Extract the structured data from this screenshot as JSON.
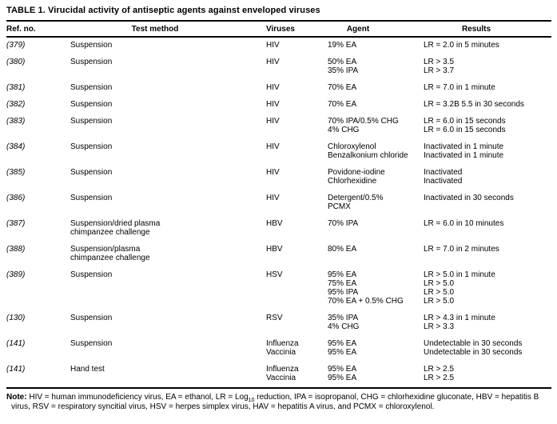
{
  "table": {
    "title": "TABLE 1. Virucidal activity of antiseptic agents against enveloped viruses",
    "columns": [
      "Ref. no.",
      "Test method",
      "Viruses",
      "Agent",
      "Results"
    ],
    "rows": [
      {
        "ref": "(379)",
        "method": [
          "Suspension"
        ],
        "viruses": [
          "HIV"
        ],
        "agents": [
          "19% EA"
        ],
        "results": [
          "LR = 2.0 in 5 minutes"
        ]
      },
      {
        "ref": "(380)",
        "method": [
          "Suspension"
        ],
        "viruses": [
          "HIV"
        ],
        "agents": [
          "50% EA",
          "35% IPA"
        ],
        "results": [
          "LR > 3.5",
          "LR > 3.7"
        ]
      },
      {
        "ref": "(381)",
        "method": [
          "Suspension"
        ],
        "viruses": [
          "HIV"
        ],
        "agents": [
          "70% EA"
        ],
        "results": [
          "LR = 7.0 in 1 minute"
        ]
      },
      {
        "ref": "(382)",
        "method": [
          "Suspension"
        ],
        "viruses": [
          "HIV"
        ],
        "agents": [
          "70% EA"
        ],
        "results": [
          "LR = 3.2B 5.5 in 30 seconds"
        ]
      },
      {
        "ref": "(383)",
        "method": [
          "Suspension"
        ],
        "viruses": [
          "HIV"
        ],
        "agents": [
          "70% IPA/0.5% CHG",
          "4% CHG"
        ],
        "results": [
          "LR = 6.0 in 15 seconds",
          "LR = 6.0 in 15 seconds"
        ]
      },
      {
        "ref": "(384)",
        "method": [
          "Suspension"
        ],
        "viruses": [
          "HIV"
        ],
        "agents": [
          "Chloroxylenol",
          "Benzalkonium chloride"
        ],
        "results": [
          "Inactivated in 1 minute",
          "Inactivated in 1 minute"
        ]
      },
      {
        "ref": "(385)",
        "method": [
          "Suspension"
        ],
        "viruses": [
          "HIV"
        ],
        "agents": [
          "Povidone-iodine",
          "Chlorhexidine"
        ],
        "results": [
          "Inactivated",
          "Inactivated"
        ]
      },
      {
        "ref": "(386)",
        "method": [
          "Suspension"
        ],
        "viruses": [
          "HIV"
        ],
        "agents": [
          "Detergent/0.5%",
          "PCMX"
        ],
        "results": [
          "Inactivated in 30 seconds"
        ]
      },
      {
        "ref": "(387)",
        "method": [
          "Suspension/dried plasma",
          "chimpanzee challenge"
        ],
        "viruses": [
          "HBV"
        ],
        "agents": [
          "70% IPA"
        ],
        "results": [
          "LR = 6.0 in 10 minutes"
        ]
      },
      {
        "ref": "(388)",
        "method": [
          "Suspension/plasma",
          "chimpanzee challenge"
        ],
        "viruses": [
          "HBV"
        ],
        "agents": [
          "80% EA"
        ],
        "results": [
          "LR = 7.0 in 2 minutes"
        ]
      },
      {
        "ref": "(389)",
        "method": [
          "Suspension"
        ],
        "viruses": [
          "HSV"
        ],
        "agents": [
          "95% EA",
          "75% EA",
          "95% IPA",
          "70% EA + 0.5% CHG"
        ],
        "results": [
          "LR > 5.0 in 1 minute",
          "LR > 5.0",
          "LR > 5.0",
          "LR > 5.0"
        ]
      },
      {
        "ref": "(130)",
        "method": [
          "Suspension"
        ],
        "viruses": [
          "RSV"
        ],
        "agents": [
          "35% IPA",
          "4% CHG"
        ],
        "results": [
          "LR > 4.3 in 1 minute",
          "LR > 3.3"
        ]
      },
      {
        "ref": "(141)",
        "method": [
          "Suspension"
        ],
        "viruses": [
          "Influenza",
          "Vaccinia"
        ],
        "agents": [
          "95% EA",
          "95% EA"
        ],
        "results": [
          "Undetectable in 30 seconds",
          "Undetectable in 30 seconds"
        ]
      },
      {
        "ref": "(141)",
        "method": [
          "Hand test"
        ],
        "viruses": [
          "Influenza",
          "Vaccinia"
        ],
        "agents": [
          "95% EA",
          "95% EA"
        ],
        "results": [
          "LR > 2.5",
          "LR > 2.5"
        ]
      }
    ],
    "note": {
      "label": "Note:",
      "pre": " HIV = human immunodeficiency virus, EA = ethanol, LR = Log",
      "sub": "10",
      "post": " reduction, IPA = isopropanol, CHG = chlorhexidine gluconate, HBV = hepatitis B virus, RSV = respiratory syncitial virus, HSV = herpes simplex virus, HAV = hepatitis A virus, and PCMX = chloroxylenol."
    }
  }
}
